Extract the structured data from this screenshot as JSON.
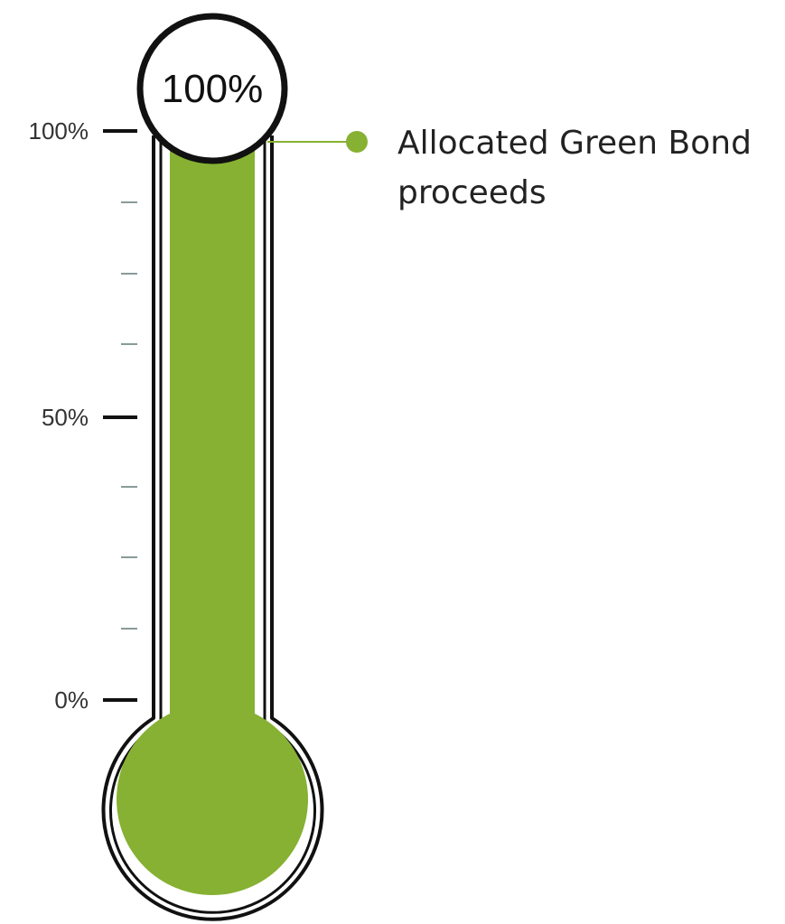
{
  "chart_data": {
    "type": "thermometer",
    "value": 100,
    "value_label": "100%",
    "ylim": [
      0,
      100
    ],
    "ticks": [
      {
        "value": 100,
        "label": "100%"
      },
      {
        "value": 50,
        "label": "50%"
      },
      {
        "value": 0,
        "label": "0%"
      }
    ],
    "minor_ticks": [
      90,
      80,
      70,
      40,
      30,
      20
    ],
    "legend": {
      "lines": [
        "Allocated Green Bond",
        "proceeds"
      ]
    },
    "colors": {
      "fill": "#86b132",
      "outline": "#111111",
      "leader": "#86b132",
      "minor_tick": "#8a9a9a"
    }
  }
}
